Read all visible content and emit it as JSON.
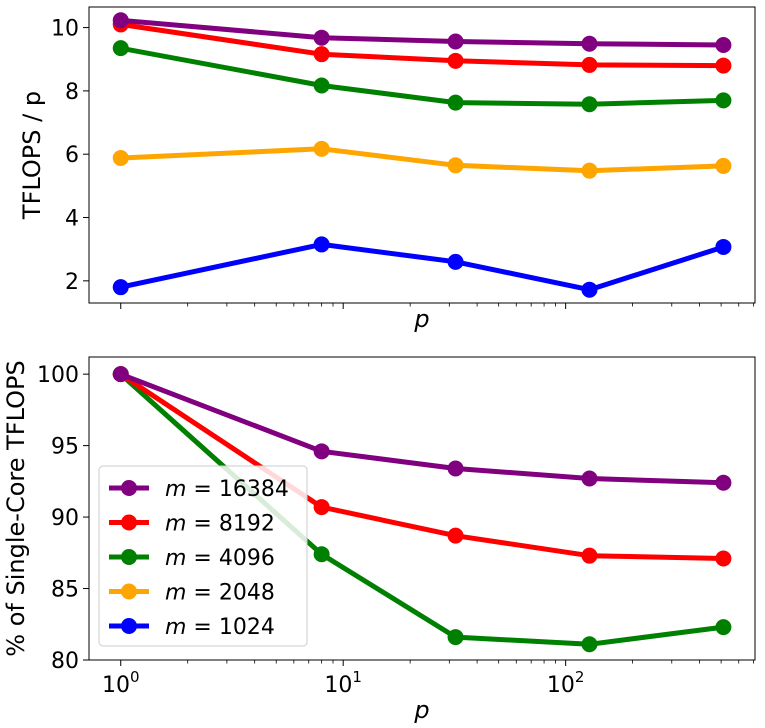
{
  "chart_data": [
    {
      "type": "line",
      "xscale": "log",
      "x": [
        1,
        8,
        32,
        128,
        512
      ],
      "xlim": [
        0.72,
        710
      ],
      "ylim": [
        1.3,
        10.65
      ],
      "yticks": [
        2,
        4,
        6,
        8,
        10
      ],
      "ytick_labels": [
        "2",
        "4",
        "6",
        "8",
        "10"
      ],
      "ylabel": "TFLOPS / p",
      "xlabel": "p",
      "show_xtick_labels": false,
      "series": [
        {
          "name": "m = 1024",
          "color": "#0000ff",
          "values": [
            1.8,
            3.15,
            2.6,
            1.72,
            3.07
          ]
        },
        {
          "name": "m = 2048",
          "color": "#ffa500",
          "values": [
            5.88,
            6.17,
            5.65,
            5.48,
            5.63
          ]
        },
        {
          "name": "m = 4096",
          "color": "#008000",
          "values": [
            9.35,
            8.17,
            7.63,
            7.58,
            7.7
          ]
        },
        {
          "name": "m = 8192",
          "color": "#ff0000",
          "values": [
            10.1,
            9.16,
            8.95,
            8.82,
            8.8
          ]
        },
        {
          "name": "m = 16384",
          "color": "#800080",
          "values": [
            10.23,
            9.68,
            9.56,
            9.49,
            9.45
          ]
        }
      ]
    },
    {
      "type": "line",
      "xscale": "log",
      "x": [
        1,
        8,
        32,
        128,
        512
      ],
      "xlim": [
        0.72,
        710
      ],
      "ylim": [
        80,
        101.2
      ],
      "yticks": [
        80,
        85,
        90,
        95,
        100
      ],
      "ytick_labels": [
        "80",
        "85",
        "90",
        "95",
        "100"
      ],
      "xticks": [
        1,
        10,
        100
      ],
      "xtick_labels": [
        {
          "base": "10",
          "exp": "0"
        },
        {
          "base": "10",
          "exp": "1"
        },
        {
          "base": "10",
          "exp": "2"
        }
      ],
      "ylabel": "% of Single-Core TFLOPS",
      "xlabel": "p",
      "show_xtick_labels": true,
      "legend": {
        "placement": "lower-left",
        "entries": [
          {
            "var": "m",
            "eq": " = ",
            "val": "16384",
            "color": "#800080"
          },
          {
            "var": "m",
            "eq": " = ",
            "val": "8192",
            "color": "#ff0000"
          },
          {
            "var": "m",
            "eq": " = ",
            "val": "4096",
            "color": "#008000"
          },
          {
            "var": "m",
            "eq": " = ",
            "val": "2048",
            "color": "#ffa500"
          },
          {
            "var": "m",
            "eq": " = ",
            "val": "1024",
            "color": "#0000ff"
          }
        ]
      },
      "series": [
        {
          "name": "m = 4096",
          "color": "#008000",
          "values": [
            100,
            87.4,
            81.6,
            81.1,
            82.3
          ]
        },
        {
          "name": "m = 8192",
          "color": "#ff0000",
          "values": [
            100,
            90.7,
            88.7,
            87.3,
            87.1
          ]
        },
        {
          "name": "m = 16384",
          "color": "#800080",
          "values": [
            100,
            94.6,
            93.4,
            92.7,
            92.4
          ]
        }
      ]
    }
  ]
}
